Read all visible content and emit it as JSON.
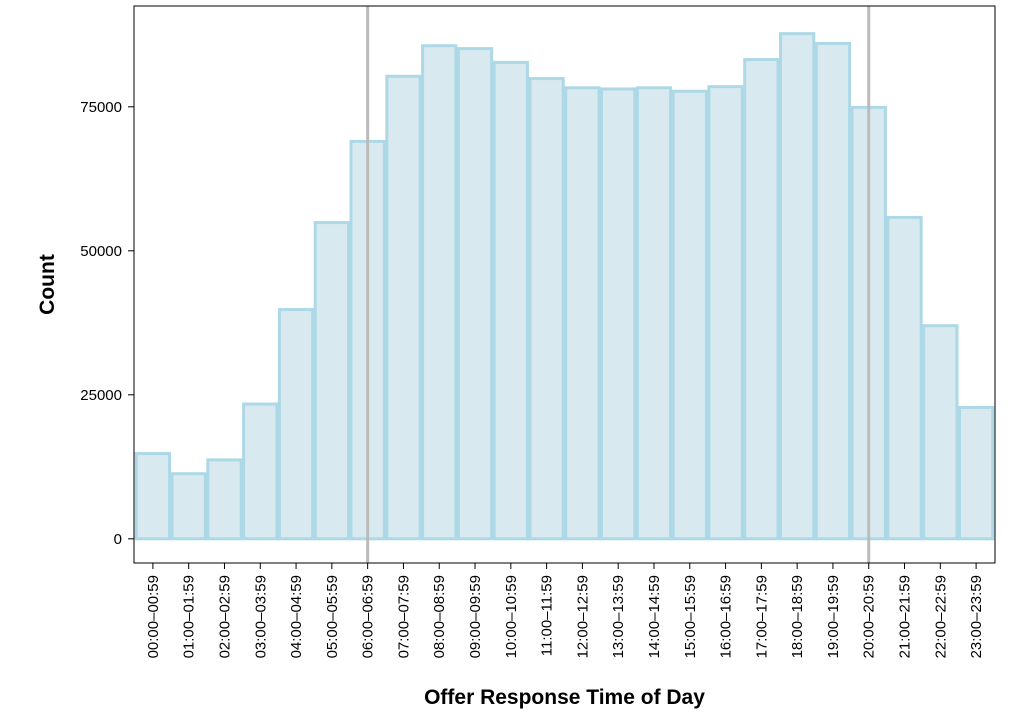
{
  "chart_data": {
    "type": "bar",
    "title": "",
    "xlabel": "Offer Response Time of Day",
    "ylabel": "Count",
    "categories": [
      "00:00–00:59",
      "01:00–01:59",
      "02:00–02:59",
      "03:00–03:59",
      "04:00–04:59",
      "05:00–05:59",
      "06:00–06:59",
      "07:00–07:59",
      "08:00–08:59",
      "09:00–09:59",
      "10:00–10:59",
      "11:00–11:59",
      "12:00–12:59",
      "13:00–13:59",
      "14:00–14:59",
      "15:00–15:59",
      "16:00–16:59",
      "17:00–17:59",
      "18:00–18:59",
      "19:00–19:59",
      "20:00–20:59",
      "21:00–21:59",
      "22:00–22:59",
      "23:00–23:59"
    ],
    "values": [
      14800,
      11300,
      13700,
      23400,
      39800,
      54900,
      69000,
      80300,
      85600,
      85100,
      82700,
      79900,
      78300,
      78100,
      78300,
      77700,
      78500,
      83200,
      87700,
      86000,
      74900,
      55800,
      37000,
      22800
    ],
    "ylim": [
      -4200,
      92500
    ],
    "yticks": [
      0,
      25000,
      50000,
      75000
    ],
    "reference_lines_at_categories": [
      "06:00–06:59",
      "20:00–20:59"
    ],
    "bar_fill": "#d8eaf0",
    "bar_stroke": "#add8e6",
    "reference_line_color": "#bbbbbb",
    "grid": false,
    "legend": "none"
  }
}
